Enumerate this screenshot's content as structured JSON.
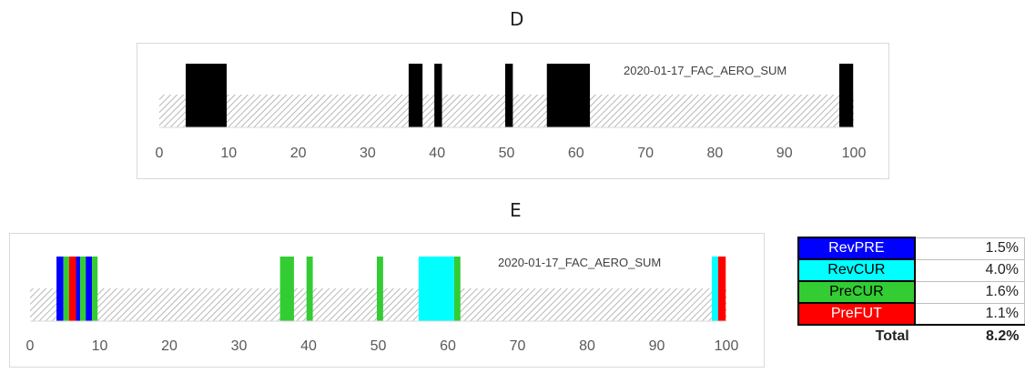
{
  "charts": {
    "D": {
      "letter": "D"
    },
    "E": {
      "letter": "E"
    }
  },
  "chart_data": [
    {
      "type": "bar",
      "panel": "D",
      "annotation": "2020-01-17_FAC_AERO_SUM",
      "xlim": [
        0,
        100
      ],
      "ticks": [
        0,
        10,
        20,
        30,
        40,
        50,
        60,
        70,
        80,
        90,
        100
      ],
      "background_band": {
        "from": 0,
        "to": 100,
        "pattern": "diagonal-hatch",
        "color": "#bfbfbf"
      },
      "segments": [
        {
          "start": 3.8,
          "end": 9.7,
          "color": "#000000"
        },
        {
          "start": 35.9,
          "end": 37.9,
          "color": "#000000"
        },
        {
          "start": 39.6,
          "end": 40.7,
          "color": "#000000"
        },
        {
          "start": 49.8,
          "end": 50.9,
          "color": "#000000"
        },
        {
          "start": 55.8,
          "end": 62.0,
          "color": "#000000"
        },
        {
          "start": 97.9,
          "end": 99.9,
          "color": "#000000"
        }
      ],
      "grid": false
    },
    {
      "type": "bar",
      "panel": "E",
      "annotation": "2020-01-17_FAC_AERO_SUM",
      "xlim": [
        0,
        100
      ],
      "ticks": [
        0,
        10,
        20,
        30,
        40,
        50,
        60,
        70,
        80,
        90,
        100
      ],
      "background_band": {
        "from": 0,
        "to": 100,
        "pattern": "diagonal-hatch",
        "color": "#bfbfbf"
      },
      "segments": [
        {
          "start": 3.8,
          "end": 4.8,
          "color": "#0000ff"
        },
        {
          "start": 4.8,
          "end": 5.6,
          "color": "#33cc33"
        },
        {
          "start": 5.6,
          "end": 6.6,
          "color": "#ff0000"
        },
        {
          "start": 6.6,
          "end": 7.2,
          "color": "#0000ff"
        },
        {
          "start": 7.2,
          "end": 8.0,
          "color": "#33cc33"
        },
        {
          "start": 8.0,
          "end": 8.9,
          "color": "#0000ff"
        },
        {
          "start": 8.9,
          "end": 9.7,
          "color": "#33cc33"
        },
        {
          "start": 35.9,
          "end": 37.9,
          "color": "#33cc33"
        },
        {
          "start": 39.7,
          "end": 40.6,
          "color": "#33cc33"
        },
        {
          "start": 49.8,
          "end": 50.7,
          "color": "#33cc33"
        },
        {
          "start": 55.8,
          "end": 60.9,
          "color": "#00ffff"
        },
        {
          "start": 60.9,
          "end": 61.8,
          "color": "#33cc33"
        },
        {
          "start": 97.9,
          "end": 98.8,
          "color": "#00ffff"
        },
        {
          "start": 98.8,
          "end": 99.9,
          "color": "#ff0000"
        }
      ],
      "grid": false
    }
  ],
  "legend": {
    "rows": [
      {
        "label": "RevPRE",
        "value": "1.5%",
        "bg": "#0000ff",
        "fg": "#ffffff"
      },
      {
        "label": "RevCUR",
        "value": "4.0%",
        "bg": "#00ffff",
        "fg": "#000000"
      },
      {
        "label": "PreCUR",
        "value": "1.6%",
        "bg": "#33cc33",
        "fg": "#000000"
      },
      {
        "label": "PreFUT",
        "value": "1.1%",
        "bg": "#ff0000",
        "fg": "#ffffff"
      }
    ],
    "total": {
      "label": "Total",
      "value": "8.2%"
    }
  }
}
